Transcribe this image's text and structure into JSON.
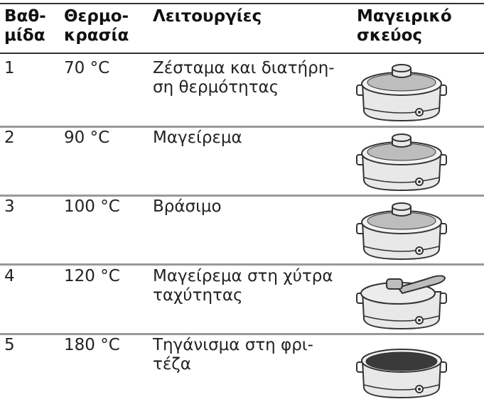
{
  "table": {
    "header": [
      [
        "Βαθ-",
        "μίδα"
      ],
      [
        "Θερμο-",
        "κρασία"
      ],
      [
        "Λειτουργίες"
      ],
      [
        "Μαγειρικό",
        "σκεύος"
      ]
    ],
    "rows": [
      [
        "1",
        "70 °C",
        [
          "Ζέσταμα και διατήρη-",
          "ση θερμότητας"
        ]
      ],
      [
        "2",
        "90 °C",
        [
          "Μαγείρεμα"
        ]
      ],
      [
        "3",
        "100 °C",
        [
          "Βράσιμο"
        ]
      ],
      [
        "4",
        "120 °C",
        [
          "Μαγείρεμα στη χύτρα",
          "ταχύτητας"
        ]
      ],
      [
        "5",
        "180 °C",
        [
          "Τηγάνισμα στη φρι-",
          "τέζα"
        ]
      ]
    ]
  }
}
